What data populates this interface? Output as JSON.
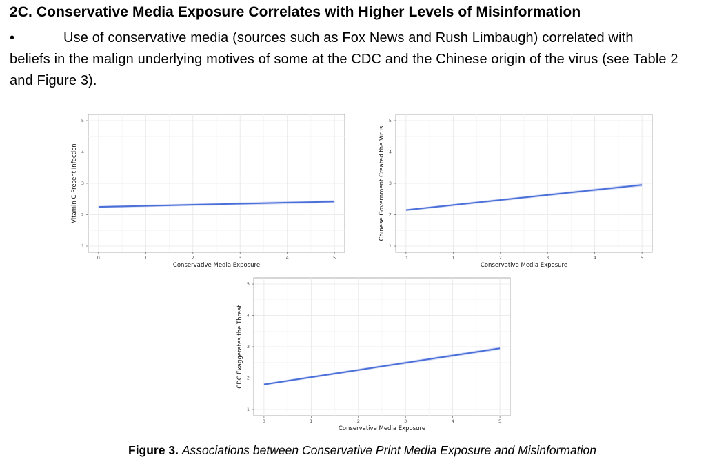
{
  "section": {
    "heading": "2C. Conservative Media Exposure Correlates with Higher Levels of Misinformation",
    "bullet": "•",
    "bullet_text_line1": "Use of conservative media (sources such as Fox News and Rush Limbaugh) correlated with",
    "bullet_text_rest": "beliefs in the malign underlying motives of some at the CDC and the Chinese origin of the virus (see Table 2 and Figure 3)."
  },
  "caption": {
    "label": "Figure 3.",
    "text": "Associations between Conservative Print Media Exposure and Misinformation"
  },
  "chart_data": [
    {
      "type": "line",
      "title": "",
      "xlabel": "Conservative Media Exposure",
      "ylabel": "Vitamin C Present Infection",
      "x": [
        0,
        5
      ],
      "y": [
        2.25,
        2.42
      ],
      "xlim": [
        0,
        5
      ],
      "ylim": [
        1,
        5
      ],
      "xticks": [
        0,
        1,
        2,
        3,
        4,
        5
      ],
      "yticks": [
        1,
        2,
        3,
        4,
        5
      ],
      "grid": true,
      "line_color": "#4a6fd8"
    },
    {
      "type": "line",
      "title": "",
      "xlabel": "Conservative Media Exposure",
      "ylabel": "Chinese Government Created the Virus",
      "x": [
        0,
        5
      ],
      "y": [
        2.15,
        2.95
      ],
      "xlim": [
        0,
        5
      ],
      "ylim": [
        1,
        5
      ],
      "xticks": [
        0,
        1,
        2,
        3,
        4,
        5
      ],
      "yticks": [
        1,
        2,
        3,
        4,
        5
      ],
      "grid": true,
      "line_color": "#4a6fd8"
    },
    {
      "type": "line",
      "title": "",
      "xlabel": "Conservative Media Exposure",
      "ylabel": "CDC Exaggerates the Threat",
      "x": [
        0,
        5
      ],
      "y": [
        1.8,
        2.95
      ],
      "xlim": [
        0,
        5
      ],
      "ylim": [
        1,
        5
      ],
      "xticks": [
        0,
        1,
        2,
        3,
        4,
        5
      ],
      "yticks": [
        1,
        2,
        3,
        4,
        5
      ],
      "grid": true,
      "line_color": "#4a6fd8"
    }
  ]
}
